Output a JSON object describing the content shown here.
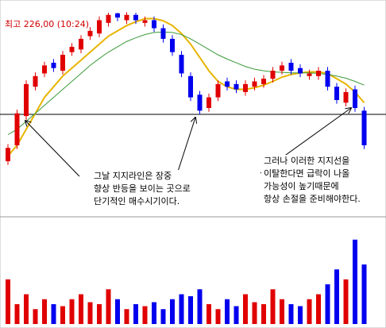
{
  "chart_data": {
    "type": "candlestick",
    "title": "최고 226,00 (10:24)",
    "open": [
      198,
      201,
      206.5,
      212,
      214.5,
      216.5,
      215,
      218.5,
      219,
      221.5,
      222,
      224,
      225.8,
      224.5,
      225.5,
      224,
      224.5,
      223,
      221,
      218,
      214,
      210.5,
      208,
      210,
      213,
      212.5,
      211,
      212,
      212.5,
      213.5,
      215,
      216.5,
      215.5,
      214,
      214,
      215,
      212,
      209,
      211.5,
      207.5
    ],
    "high": [
      201.2,
      207.7,
      213.2,
      214.7,
      216.7,
      217.2,
      218.7,
      220.2,
      221.7,
      223.2,
      225.2,
      225.9,
      225.9,
      226,
      225.9,
      225.2,
      225.2,
      223.7,
      221.7,
      218.7,
      214.7,
      211.2,
      210.7,
      213.2,
      213.7,
      213.2,
      213.2,
      213.7,
      214.2,
      215.7,
      216.7,
      217.2,
      216.2,
      215.2,
      215.7,
      215.7,
      212.7,
      211.7,
      212.2,
      208.2
    ],
    "low": [
      197.3,
      200.3,
      205.8,
      211.3,
      213.8,
      214.8,
      214.3,
      217.8,
      218.3,
      220.8,
      221.3,
      223.3,
      224.3,
      223.8,
      223.8,
      223.3,
      222.3,
      220.3,
      217.8,
      213.8,
      209.3,
      206.8,
      207.3,
      209.3,
      211.3,
      210.8,
      210.3,
      211.3,
      211.8,
      212.8,
      214.3,
      214.3,
      213.8,
      213.3,
      213.3,
      211.3,
      208.8,
      208.3,
      207.3,
      200.3
    ],
    "close": [
      200.5,
      207,
      212.5,
      214,
      216,
      215.5,
      218,
      219.5,
      221,
      222.5,
      224.5,
      225.5,
      225,
      225.5,
      224.5,
      224.5,
      223,
      221,
      218.5,
      214.5,
      210,
      207.5,
      210,
      212.5,
      212,
      211.5,
      212.5,
      213,
      213.5,
      215,
      216,
      215,
      214.5,
      214.5,
      215,
      212,
      209.5,
      211,
      208,
      201
    ],
    "volume": [
      45,
      20,
      30,
      15,
      25,
      20,
      18,
      25,
      30,
      22,
      20,
      35,
      25,
      15,
      20,
      18,
      22,
      15,
      25,
      30,
      28,
      35,
      20,
      15,
      25,
      18,
      30,
      22,
      20,
      35,
      25,
      20,
      18,
      25,
      30,
      40,
      55,
      45,
      85,
      60
    ],
    "up_color": "#e00000",
    "down_color": "#0000ee",
    "moving_averages": [
      {
        "color": "#e8b400",
        "values": [
          199,
          201,
          204,
          207,
          210,
          212,
          214,
          215.5,
          217,
          218.5,
          220,
          221.5,
          222.5,
          223.5,
          224.2,
          224.8,
          224.8,
          224.4,
          223.5,
          222,
          220,
          217.5,
          215,
          213,
          212,
          211.5,
          211.5,
          211.8,
          212.3,
          213,
          213.8,
          214.3,
          214.6,
          214.8,
          214.8,
          214.5,
          213.5,
          212.5,
          211,
          209
        ]
      },
      {
        "color": "#3a9a3a",
        "values": [
          203,
          204,
          205.5,
          207,
          208.5,
          210,
          211.5,
          213,
          214.5,
          216,
          217.3,
          218.5,
          219.5,
          220.5,
          221.2,
          221.8,
          222.2,
          222.3,
          222.2,
          221.8,
          221,
          220,
          219,
          218,
          217.2,
          216.5,
          215.8,
          215.3,
          215,
          214.8,
          214.7,
          214.6,
          214.6,
          214.6,
          214.5,
          214.3,
          214,
          213.6,
          213,
          212.3
        ]
      }
    ],
    "support_line": 206.8,
    "ylim": [
      188,
      228
    ],
    "volume_ylim": [
      0,
      100
    ],
    "annotations": [
      {
        "lines": [
          "그날 지지라인은 장중",
          "향상 반등을 보이는 곳으로",
          "단기적인 매수시기이다."
        ]
      },
      {
        "lines": [
          "그러나 이러한 지지선을",
          "이탈한다면 급락이 나올",
          "가능성이 높기때문에",
          "항상 손절을 준비해야한다."
        ]
      }
    ]
  }
}
